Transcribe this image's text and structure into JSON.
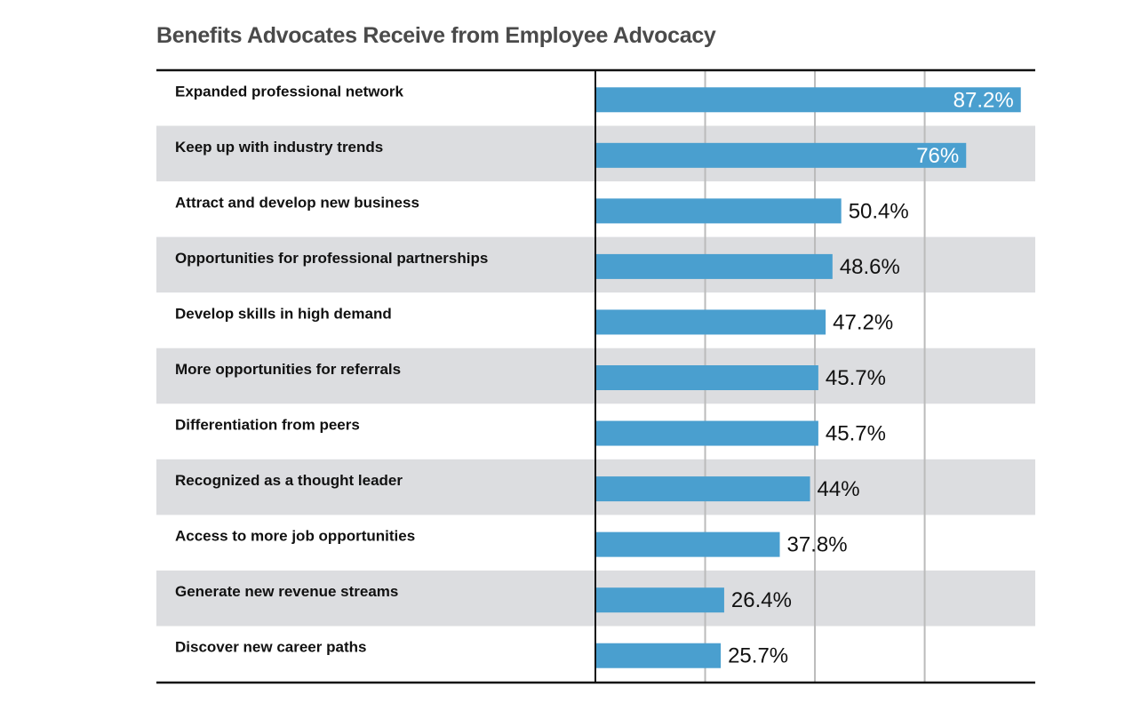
{
  "chart_data": {
    "type": "bar",
    "orientation": "horizontal",
    "title": "Benefits Advocates Receive from Employee Advocacy",
    "categories": [
      "Expanded professional network",
      "Keep up with industry trends",
      "Attract and develop new business",
      "Opportunities for professional partnerships",
      "Develop skills in high demand",
      "More opportunities for referrals",
      "Differentiation from peers",
      "Recognized as a thought leader",
      "Access to more job opportunities",
      "Generate new revenue streams",
      "Discover new career paths"
    ],
    "values": [
      87.2,
      76,
      50.4,
      48.6,
      47.2,
      45.7,
      45.7,
      44,
      37.8,
      26.4,
      25.7
    ],
    "labels": [
      "87.2%",
      "76%",
      "50.4%",
      "48.6%",
      "47.2%",
      "45.7%",
      "45.7%",
      "44%",
      "37.8%",
      "26.4%",
      "25.7%"
    ],
    "xlim": [
      0,
      90
    ],
    "gridlines": [
      22.5,
      45,
      67.5
    ],
    "xlabel": "",
    "ylabel": "",
    "colors": {
      "bar": "#4a9fcf",
      "stripe": "#dcdde0",
      "grid": "#bbbbbb",
      "axis": "#111111",
      "text": "#111111",
      "inside_label": "#ffffff"
    }
  }
}
